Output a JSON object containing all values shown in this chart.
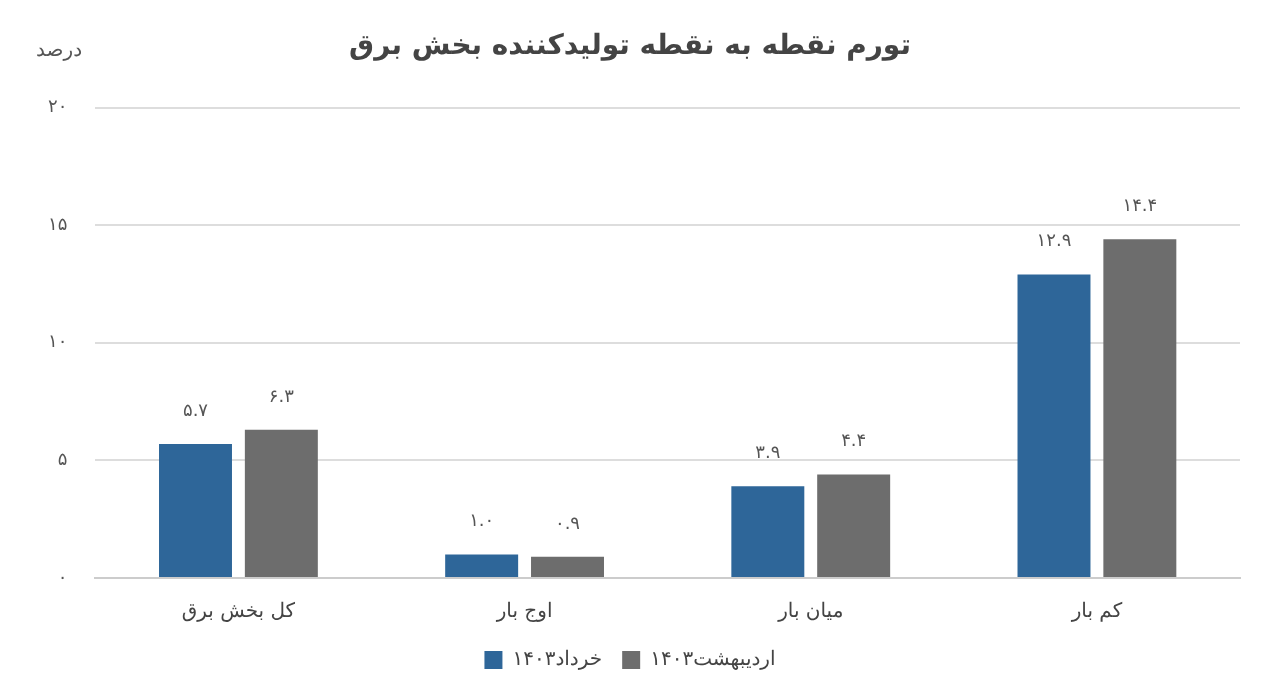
{
  "chart_data": {
    "type": "bar",
    "title": "تورم نقطه به نقطه تولیدکننده بخش برق",
    "ylabel": "درصد",
    "categories": [
      "کل بخش برق",
      "اوج بار",
      "میان بار",
      "کم بار"
    ],
    "series": [
      {
        "name": "خرداد۱۴۰۳",
        "color": "#2e6699",
        "values": [
          5.7,
          1.0,
          3.9,
          12.9
        ],
        "value_labels": [
          "۵.۷",
          "۱.۰",
          "۳.۹",
          "۱۲.۹"
        ]
      },
      {
        "name": "اردیبهشت۱۴۰۳",
        "color": "#6d6d6d",
        "values": [
          6.3,
          0.9,
          4.4,
          14.4
        ],
        "value_labels": [
          "۶.۳",
          "۰.۹",
          "۴.۴",
          "۱۴.۴"
        ]
      }
    ],
    "ylim": [
      0,
      20
    ],
    "yticks": [
      {
        "value": 0,
        "label": "۰"
      },
      {
        "value": 5,
        "label": "۵"
      },
      {
        "value": 10,
        "label": "۱۰"
      },
      {
        "value": 15,
        "label": "۱۵"
      },
      {
        "value": 20,
        "label": "۲۰"
      }
    ],
    "grid": "y",
    "legend": "bottom"
  }
}
